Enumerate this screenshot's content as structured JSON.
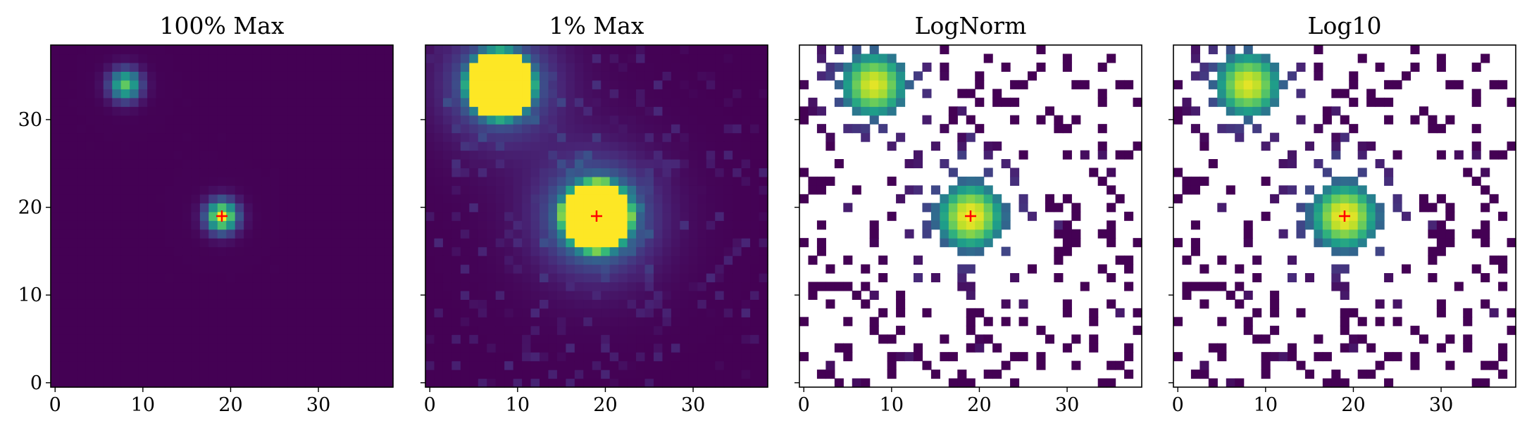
{
  "figure": {
    "background": "#ffffff",
    "marker_color": "#ff0000",
    "colormap": "viridis"
  },
  "chart_data": [
    {
      "type": "heatmap",
      "title": "100% Max",
      "xlabel": "",
      "ylabel": "",
      "grid_size": 39,
      "xlim": [
        -0.5,
        38.5
      ],
      "ylim": [
        -0.5,
        38.5
      ],
      "xticks": [
        0,
        10,
        20,
        30
      ],
      "yticks": [
        0,
        10,
        20,
        30
      ],
      "show_ytick_labels": true,
      "scale": "linear",
      "vmax_fraction": 1.0,
      "marker": {
        "x": 19,
        "y": 19,
        "symbol": "+"
      },
      "sources": [
        {
          "x": 19,
          "y": 19,
          "amplitude": 1.0
        },
        {
          "x": 8,
          "y": 34,
          "amplitude": 0.75
        }
      ]
    },
    {
      "type": "heatmap",
      "title": "1% Max",
      "xlabel": "",
      "ylabel": "",
      "grid_size": 39,
      "xlim": [
        -0.5,
        38.5
      ],
      "ylim": [
        -0.5,
        38.5
      ],
      "xticks": [
        0,
        10,
        20,
        30
      ],
      "yticks": [
        0,
        10,
        20,
        30
      ],
      "show_ytick_labels": false,
      "scale": "linear",
      "vmax_fraction": 0.01,
      "marker": {
        "x": 19,
        "y": 19,
        "symbol": "+"
      },
      "sources": [
        {
          "x": 19,
          "y": 19,
          "amplitude": 1.0
        },
        {
          "x": 8,
          "y": 34,
          "amplitude": 0.75
        }
      ]
    },
    {
      "type": "heatmap",
      "title": "LogNorm",
      "xlabel": "",
      "ylabel": "",
      "grid_size": 39,
      "xlim": [
        -0.5,
        38.5
      ],
      "ylim": [
        -0.5,
        38.5
      ],
      "xticks": [
        0,
        10,
        20,
        30
      ],
      "yticks": [
        0,
        10,
        20,
        30
      ],
      "show_ytick_labels": false,
      "scale": "log",
      "nonpositive": "blank",
      "marker": {
        "x": 19,
        "y": 19,
        "symbol": "+"
      },
      "sources": [
        {
          "x": 19,
          "y": 19,
          "amplitude": 1.0
        },
        {
          "x": 8,
          "y": 34,
          "amplitude": 0.75
        }
      ]
    },
    {
      "type": "heatmap",
      "title": "Log10",
      "xlabel": "",
      "ylabel": "",
      "grid_size": 39,
      "xlim": [
        -0.5,
        38.5
      ],
      "ylim": [
        -0.5,
        38.5
      ],
      "xticks": [
        0,
        10,
        20,
        30
      ],
      "yticks": [
        0,
        10,
        20,
        30
      ],
      "show_ytick_labels": false,
      "scale": "log",
      "nonpositive": "blank",
      "marker": {
        "x": 19,
        "y": 19,
        "symbol": "+"
      },
      "sources": [
        {
          "x": 19,
          "y": 19,
          "amplitude": 1.0
        },
        {
          "x": 8,
          "y": 34,
          "amplitude": 0.75
        }
      ]
    }
  ]
}
